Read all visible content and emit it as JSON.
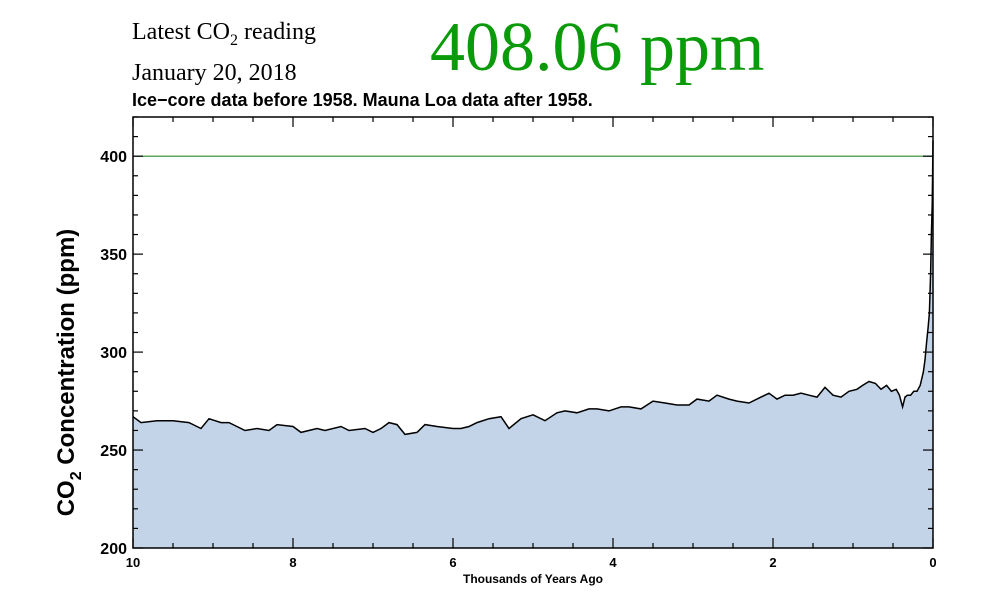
{
  "header": {
    "latest_prefix": "Latest CO",
    "latest_sub": "2",
    "latest_suffix": " reading",
    "date": "January 20, 2018",
    "reading": "408.06 ppm"
  },
  "chart_data": {
    "type": "area",
    "title": "Ice−core data before 1958. Mauna Loa data after 1958.",
    "xlabel": "Thousands of Years Ago",
    "ylabel_prefix": "CO",
    "ylabel_sub": "2",
    "ylabel_suffix": " Concentration (ppm)",
    "xlim": [
      10,
      0
    ],
    "ylim": [
      200,
      420
    ],
    "x_ticks": [
      10,
      8,
      6,
      4,
      2,
      0
    ],
    "y_ticks": [
      200,
      250,
      300,
      350,
      400
    ],
    "reference_line": {
      "value": 400,
      "color": "#2a8a2a"
    },
    "fill_color": "#c3d4e8",
    "line_color": "#000000",
    "series": [
      {
        "x": [
          10,
          9.9,
          9.7,
          9.5,
          9.3,
          9.15,
          9.05,
          8.9,
          8.8,
          8.6,
          8.45,
          8.3,
          8.2,
          8.0,
          7.9,
          7.7,
          7.6,
          7.4,
          7.3,
          7.1,
          7.0,
          6.9,
          6.8,
          6.7,
          6.6,
          6.45,
          6.35,
          6.2,
          6.0,
          5.9,
          5.8,
          5.75,
          5.7,
          5.55,
          5.4,
          5.3,
          5.15,
          5.0,
          4.85,
          4.7,
          4.6,
          4.45,
          4.3,
          4.2,
          4.05,
          3.9,
          3.8,
          3.65,
          3.5,
          3.35,
          3.2,
          3.05,
          2.95,
          2.8,
          2.7,
          2.55,
          2.45,
          2.3,
          2.15,
          2.05,
          1.95,
          1.85,
          1.75,
          1.65,
          1.55,
          1.45,
          1.35,
          1.25,
          1.15,
          1.05,
          0.95,
          0.88,
          0.8,
          0.72,
          0.65,
          0.58,
          0.52,
          0.46,
          0.42,
          0.38,
          0.35,
          0.32,
          0.28,
          0.24,
          0.2,
          0.16,
          0.12,
          0.1,
          0.08,
          0.06,
          0.045,
          0.03,
          0.02,
          0.01,
          0.004,
          0.0
        ],
        "y": [
          267,
          264,
          265,
          265,
          264,
          261,
          266,
          264,
          264,
          260,
          261,
          260,
          263,
          262,
          259,
          261,
          260,
          262,
          260,
          261,
          259,
          261,
          264,
          263,
          258,
          259,
          263,
          262,
          261,
          261,
          262,
          263,
          264,
          266,
          267,
          261,
          266,
          268,
          265,
          269,
          270,
          269,
          271,
          271,
          270,
          272,
          272,
          271,
          275,
          274,
          273,
          273,
          276,
          275,
          278,
          276,
          275,
          274,
          277,
          279,
          276,
          278,
          278,
          279,
          278,
          277,
          282,
          278,
          277,
          280,
          281,
          283,
          285,
          284,
          281,
          283,
          280,
          281,
          278,
          272,
          277,
          278,
          278,
          280,
          280,
          283,
          290,
          296,
          305,
          313,
          320,
          340,
          360,
          375,
          395,
          408
        ]
      }
    ]
  }
}
